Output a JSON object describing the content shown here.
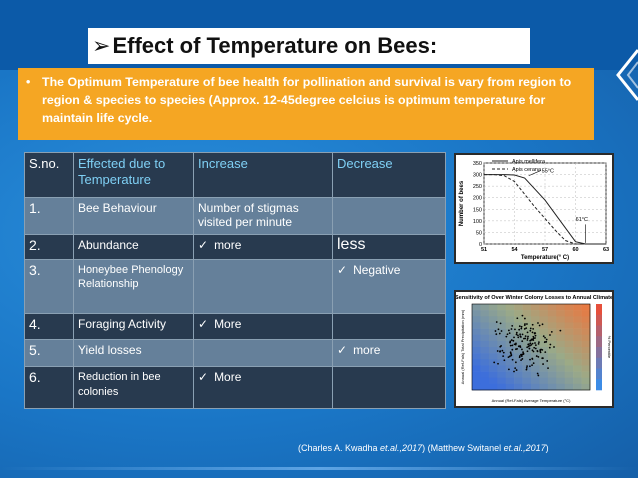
{
  "slide": {
    "title_arrow": "➢",
    "title": "Effect of Temperature on Bees:",
    "bullet_symbol": "•",
    "bullet_text": "The Optimum Temperature of bee  health for pollination and survival is vary from region to region & species to species (Approx. 12-45degree celcius is optimum temperature for maintain life cycle.",
    "citation_prefix": "(Charles A. Kwadha ",
    "citation_etal_1": "et.al.,2017",
    "citation_mid": ") (Matthew Switanel ",
    "citation_etal_2": "et.al.,2017",
    "citation_suffix": ")"
  },
  "table": {
    "headers": [
      "S.no.",
      "Effected due to Temperature",
      "Increase",
      "Decrease"
    ],
    "check_symbol": "✓",
    "rows": [
      {
        "sno": "1.",
        "effect": "Bee Behaviour",
        "increase": "Number of stigmas visited per minute",
        "decrease": ""
      },
      {
        "sno": "2.",
        "effect": "Abundance",
        "increase": "more",
        "decrease": "less"
      },
      {
        "sno": "3.",
        "effect": "Honeybee Phenology Relationship",
        "increase": "",
        "decrease": "Negative"
      },
      {
        "sno": "4.",
        "effect": "Foraging Activity",
        "increase": "More",
        "decrease": ""
      },
      {
        "sno": "5.",
        "effect": "Yield losses",
        "increase": "",
        "decrease": "more"
      },
      {
        "sno": "6.",
        "effect": "Reduction in bee colonies",
        "increase": "More",
        "decrease": ""
      }
    ]
  },
  "chart_data": [
    {
      "type": "line",
      "title": "",
      "xlabel": "Temperature(° C)",
      "ylabel": "Number of bees",
      "x_ticks": [
        "51",
        "54",
        "57",
        "60",
        "63"
      ],
      "y_ticks": [
        "0",
        "50",
        "100",
        "150",
        "200",
        "250",
        "300",
        "350"
      ],
      "xlim": [
        51,
        63
      ],
      "ylim": [
        0,
        350
      ],
      "legend": "top",
      "series": [
        {
          "name": "Apis mellifera",
          "style": "solid",
          "x": [
            51,
            53,
            54,
            55,
            57,
            59,
            60,
            61,
            63
          ],
          "y": [
            300,
            300,
            298,
            285,
            190,
            70,
            10,
            0,
            0
          ]
        },
        {
          "name": "Apis cerana",
          "style": "dashed",
          "x": [
            51,
            52,
            53,
            54,
            56,
            58,
            59,
            60,
            63
          ],
          "y": [
            300,
            300,
            295,
            270,
            160,
            60,
            15,
            0,
            0
          ]
        }
      ],
      "annotations": [
        "55°C",
        "61°C"
      ]
    },
    {
      "type": "heatmap",
      "title": "Sensitivity of Over Winter Colony Losses to Annual Climate",
      "xlabel": "Annual (Ref-Fals) Average Temperature (°C)",
      "ylabel": "Annual (Ref-Fals) Total Precipitation (mm)",
      "colorbar_label": "% Percentile"
    }
  ]
}
